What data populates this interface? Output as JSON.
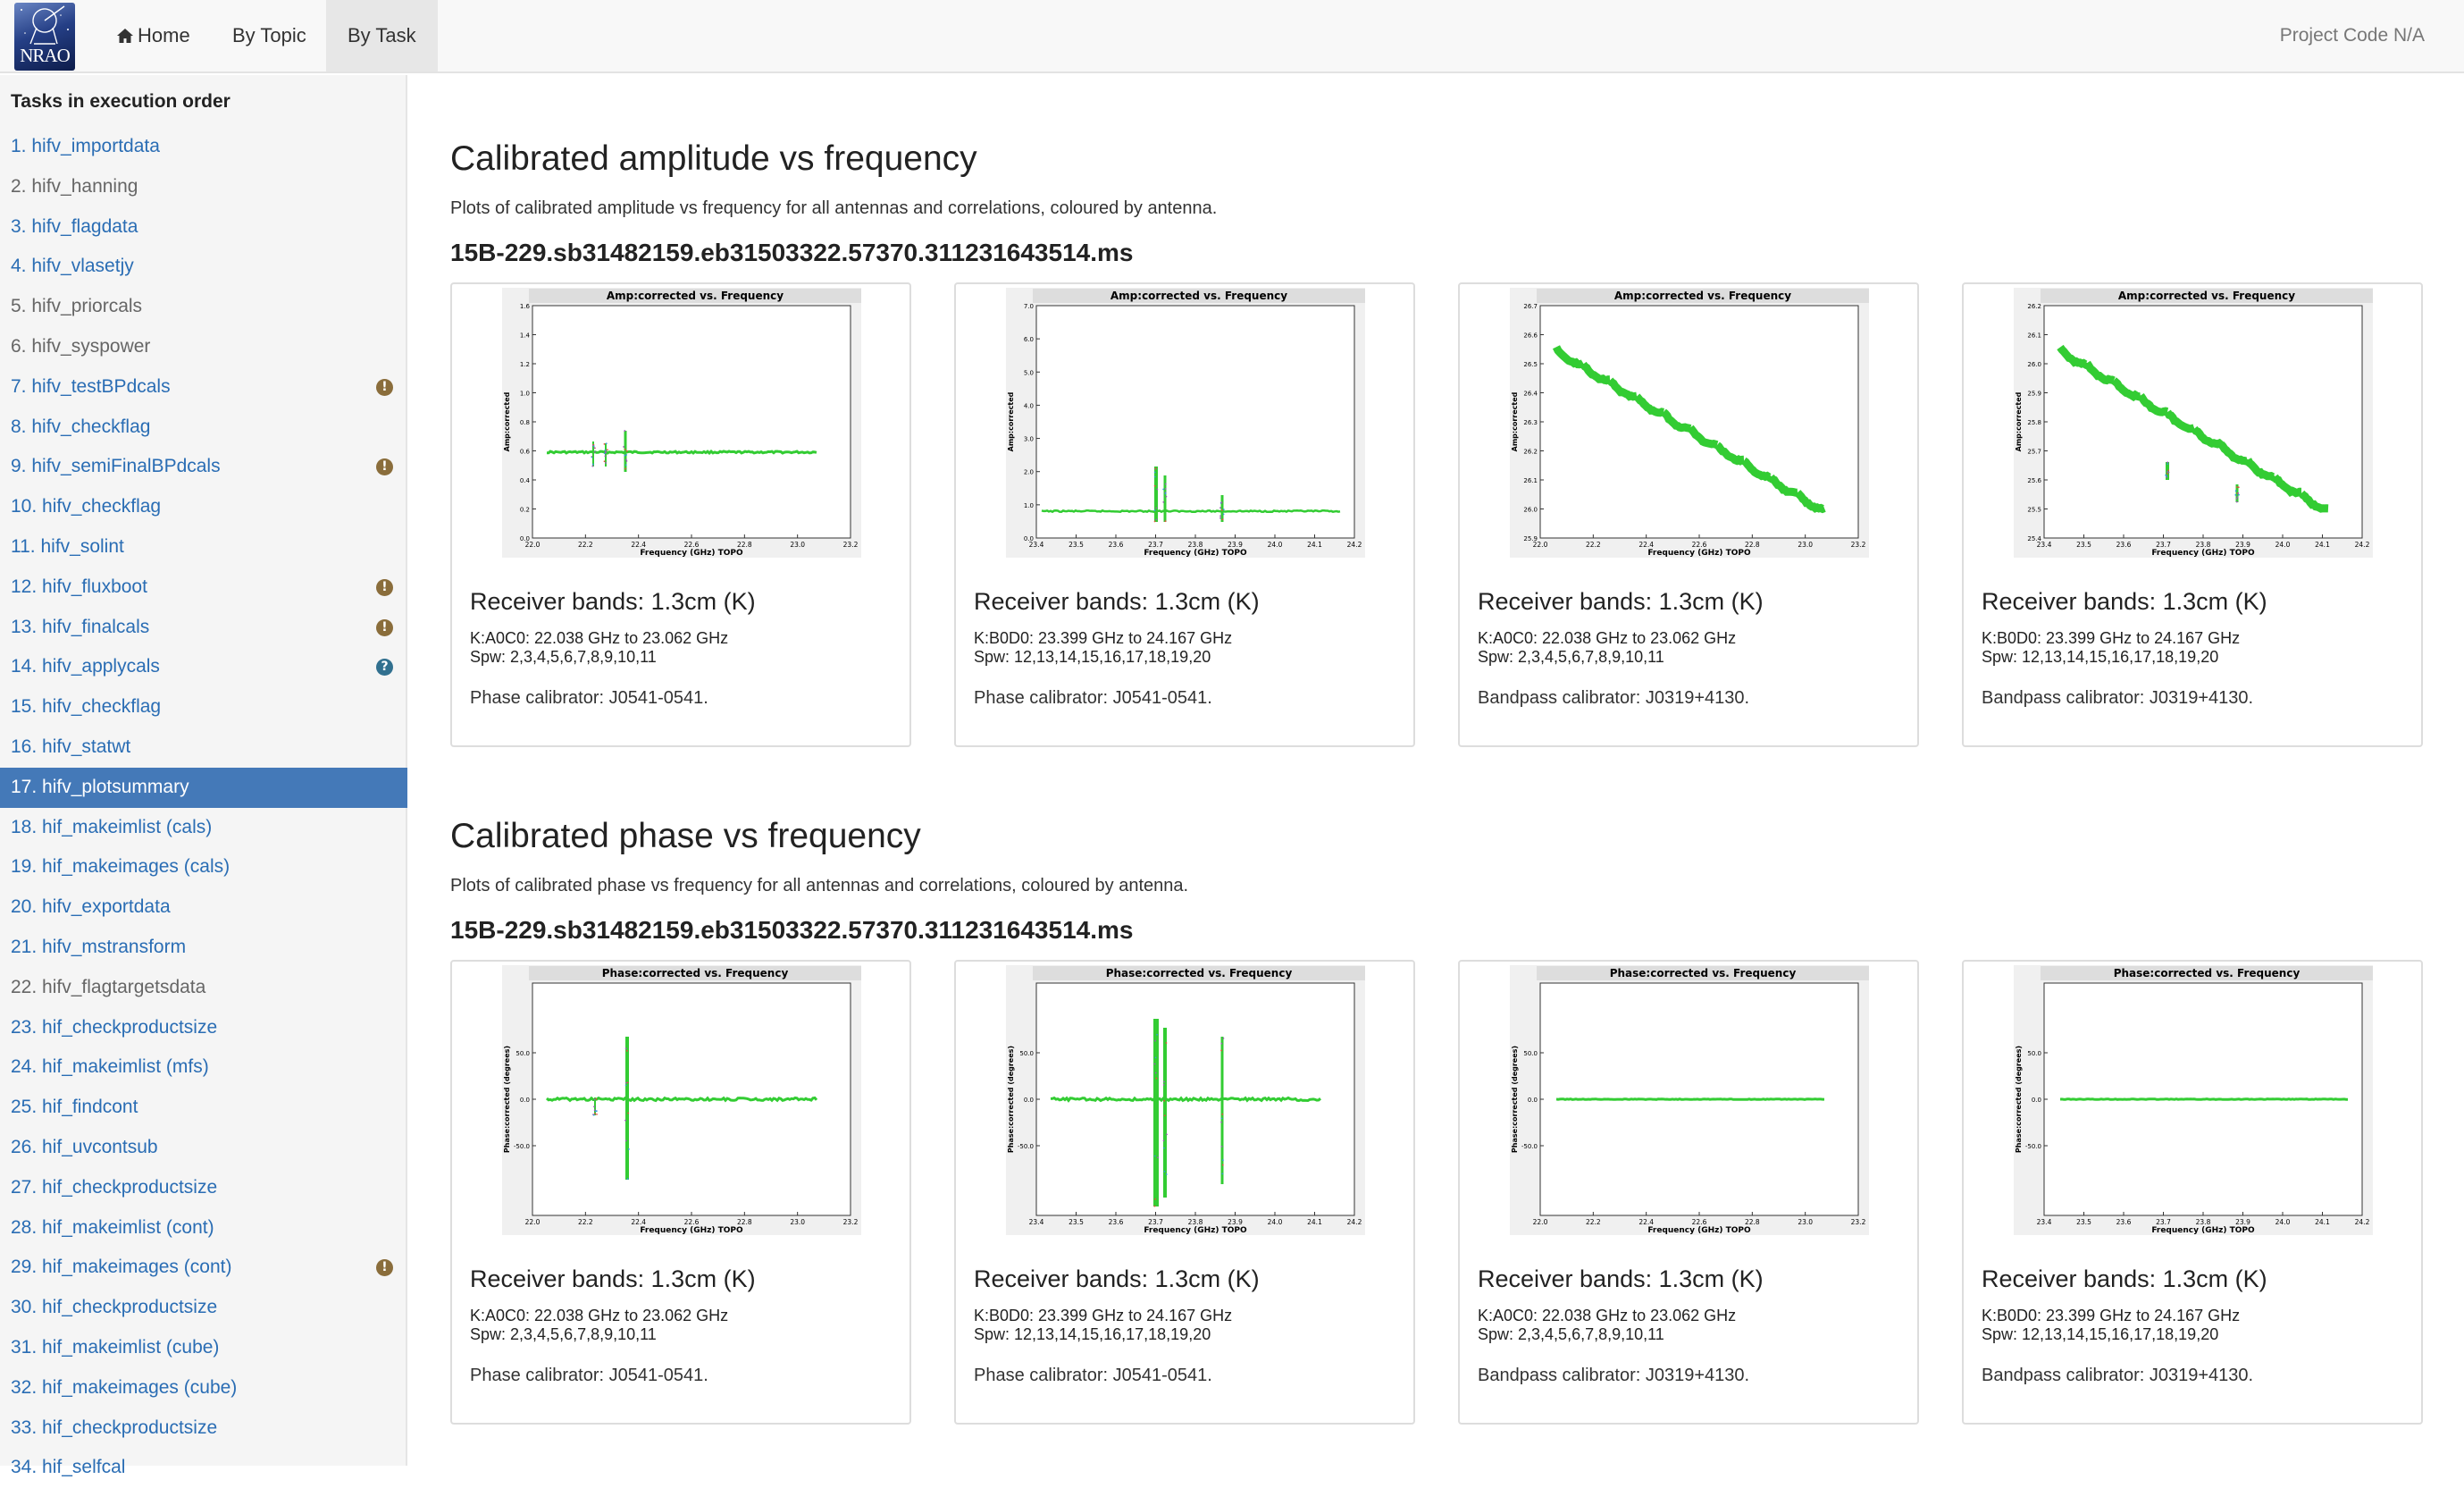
{
  "navbar": {
    "logo_text": "NRAO",
    "home_label": "Home",
    "by_topic_label": "By Topic",
    "by_task_label": "By Task",
    "project_code": "Project Code N/A"
  },
  "sidebar": {
    "title": "Tasks in execution order",
    "items": [
      {
        "label": "1. hifv_importdata",
        "link": true
      },
      {
        "label": "2. hifv_hanning",
        "link": false
      },
      {
        "label": "3. hifv_flagdata",
        "link": true
      },
      {
        "label": "4. hifv_vlasetjy",
        "link": true
      },
      {
        "label": "5. hifv_priorcals",
        "link": false
      },
      {
        "label": "6. hifv_syspower",
        "link": false
      },
      {
        "label": "7. hifv_testBPdcals",
        "link": true,
        "badge": "warning"
      },
      {
        "label": "8. hifv_checkflag",
        "link": true
      },
      {
        "label": "9. hifv_semiFinalBPdcals",
        "link": true,
        "badge": "warning"
      },
      {
        "label": "10. hifv_checkflag",
        "link": true
      },
      {
        "label": "11. hifv_solint",
        "link": true
      },
      {
        "label": "12. hifv_fluxboot",
        "link": true,
        "badge": "warning"
      },
      {
        "label": "13. hifv_finalcals",
        "link": true,
        "badge": "warning"
      },
      {
        "label": "14. hifv_applycals",
        "link": true,
        "badge": "info"
      },
      {
        "label": "15. hifv_checkflag",
        "link": true
      },
      {
        "label": "16. hifv_statwt",
        "link": true
      },
      {
        "label": "17. hifv_plotsummary",
        "link": true,
        "active": true
      },
      {
        "label": "18. hif_makeimlist (cals)",
        "link": true
      },
      {
        "label": "19. hif_makeimages (cals)",
        "link": true
      },
      {
        "label": "20. hifv_exportdata",
        "link": true
      },
      {
        "label": "21. hifv_mstransform",
        "link": true
      },
      {
        "label": "22. hifv_flagtargetsdata",
        "link": false
      },
      {
        "label": "23. hif_checkproductsize",
        "link": true
      },
      {
        "label": "24. hif_makeimlist (mfs)",
        "link": true
      },
      {
        "label": "25. hif_findcont",
        "link": true
      },
      {
        "label": "26. hif_uvcontsub",
        "link": true
      },
      {
        "label": "27. hif_checkproductsize",
        "link": true
      },
      {
        "label": "28. hif_makeimlist (cont)",
        "link": true
      },
      {
        "label": "29. hif_makeimages (cont)",
        "link": true,
        "badge": "warning"
      },
      {
        "label": "30. hif_checkproductsize",
        "link": true
      },
      {
        "label": "31. hif_makeimlist (cube)",
        "link": true
      },
      {
        "label": "32. hif_makeimages (cube)",
        "link": true
      },
      {
        "label": "33. hif_checkproductsize",
        "link": true
      },
      {
        "label": "34. hif_selfcal",
        "link": true
      }
    ]
  },
  "sections": [
    {
      "title": "Calibrated amplitude vs frequency",
      "description": "Plots of calibrated amplitude vs frequency for all antennas and correlations, coloured by antenna.",
      "ms_name": "15B-229.sb31482159.eb31503322.57370.311231643514.ms",
      "plot_title": "Amp:corrected vs. Frequency",
      "ylabel": "Amp:corrected",
      "xlabel": "Frequency (GHz) TOPO",
      "cards": [
        {
          "title": "Receiver bands: 1.3cm (K)",
          "spw_range": "K:A0C0: 22.038 GHz to 23.062 GHz",
          "spw_list": "Spw: 2,3,4,5,6,7,8,9,10,11",
          "calibrator": "Phase calibrator: J0541-0541.",
          "plot": {
            "kind": "amp-flat",
            "xticks": [
              "22.0",
              "22.2",
              "22.4",
              "22.6",
              "22.8",
              "23.0",
              "23.2"
            ],
            "yticks": [
              "0.0",
              "0.2",
              "0.4",
              "0.6",
              "0.8",
              "1.0",
              "1.2",
              "1.4",
              "1.6"
            ]
          }
        },
        {
          "title": "Receiver bands: 1.3cm (K)",
          "spw_range": "K:B0D0: 23.399 GHz to 24.167 GHz",
          "spw_list": "Spw: 12,13,14,15,16,17,18,19,20",
          "calibrator": "Phase calibrator: J0541-0541.",
          "plot": {
            "kind": "amp-flat2",
            "xticks": [
              "23.4",
              "23.5",
              "23.6",
              "23.7",
              "23.8",
              "23.9",
              "24.0",
              "24.1",
              "24.2"
            ],
            "yticks": [
              "0.0",
              "1.0",
              "2.0",
              "3.0",
              "4.0",
              "5.0",
              "6.0",
              "7.0"
            ]
          }
        },
        {
          "title": "Receiver bands: 1.3cm (K)",
          "spw_range": "K:A0C0: 22.038 GHz to 23.062 GHz",
          "spw_list": "Spw: 2,3,4,5,6,7,8,9,10,11",
          "calibrator": "Bandpass calibrator: J0319+4130.",
          "plot": {
            "kind": "amp-slope",
            "xticks": [
              "22.0",
              "22.2",
              "22.4",
              "22.6",
              "22.8",
              "23.0",
              "23.2"
            ],
            "yticks": [
              "25.9",
              "26.0",
              "26.1",
              "26.2",
              "26.3",
              "26.4",
              "26.5",
              "26.6",
              "26.7"
            ]
          }
        },
        {
          "title": "Receiver bands: 1.3cm (K)",
          "spw_range": "K:B0D0: 23.399 GHz to 24.167 GHz",
          "spw_list": "Spw: 12,13,14,15,16,17,18,19,20",
          "calibrator": "Bandpass calibrator: J0319+4130.",
          "plot": {
            "kind": "amp-slope2",
            "xticks": [
              "23.4",
              "23.5",
              "23.6",
              "23.7",
              "23.8",
              "23.9",
              "24.0",
              "24.1",
              "24.2"
            ],
            "yticks": [
              "25.4",
              "25.5",
              "25.6",
              "25.7",
              "25.8",
              "25.9",
              "26.0",
              "26.1",
              "26.2"
            ]
          }
        }
      ]
    },
    {
      "title": "Calibrated phase vs frequency",
      "description": "Plots of calibrated phase vs frequency for all antennas and correlations, coloured by antenna.",
      "ms_name": "15B-229.sb31482159.eb31503322.57370.311231643514.ms",
      "plot_title": "Phase:corrected vs. Frequency",
      "ylabel": "Phase:corrected (degrees)",
      "xlabel": "Frequency (GHz) TOPO",
      "cards": [
        {
          "title": "Receiver bands: 1.3cm (K)",
          "spw_range": "K:A0C0: 22.038 GHz to 23.062 GHz",
          "spw_list": "Spw: 2,3,4,5,6,7,8,9,10,11",
          "calibrator": "Phase calibrator: J0541-0541.",
          "plot": {
            "kind": "phase-a",
            "xticks": [
              "22.0",
              "22.2",
              "22.4",
              "22.6",
              "22.8",
              "23.0",
              "23.2"
            ],
            "yticks": [
              "-50.0",
              "0.0",
              "50.0"
            ]
          }
        },
        {
          "title": "Receiver bands: 1.3cm (K)",
          "spw_range": "K:B0D0: 23.399 GHz to 24.167 GHz",
          "spw_list": "Spw: 12,13,14,15,16,17,18,19,20",
          "calibrator": "Phase calibrator: J0541-0541.",
          "plot": {
            "kind": "phase-b",
            "xticks": [
              "23.4",
              "23.5",
              "23.6",
              "23.7",
              "23.8",
              "23.9",
              "24.0",
              "24.1",
              "24.2"
            ],
            "yticks": [
              "-50.0",
              "0.0",
              "50.0"
            ]
          }
        },
        {
          "title": "Receiver bands: 1.3cm (K)",
          "spw_range": "K:A0C0: 22.038 GHz to 23.062 GHz",
          "spw_list": "Spw: 2,3,4,5,6,7,8,9,10,11",
          "calibrator": "Bandpass calibrator: J0319+4130.",
          "plot": {
            "kind": "phase-flat",
            "xticks": [
              "22.0",
              "22.2",
              "22.4",
              "22.6",
              "22.8",
              "23.0",
              "23.2"
            ],
            "yticks": [
              "-50.0",
              "0.0",
              "50.0"
            ]
          }
        },
        {
          "title": "Receiver bands: 1.3cm (K)",
          "spw_range": "K:B0D0: 23.399 GHz to 24.167 GHz",
          "spw_list": "Spw: 12,13,14,15,16,17,18,19,20",
          "calibrator": "Bandpass calibrator: J0319+4130.",
          "plot": {
            "kind": "phase-flat2",
            "xticks": [
              "23.4",
              "23.5",
              "23.6",
              "23.7",
              "23.8",
              "23.9",
              "24.0",
              "24.1",
              "24.2"
            ],
            "yticks": [
              "-50.0",
              "0.0",
              "50.0"
            ]
          }
        }
      ]
    }
  ],
  "colors": {
    "link": "#2a6db4",
    "active_bg": "#4479b8",
    "warning_badge": "#8a6d3b",
    "info_badge": "#31708f",
    "plot_green": "#33cc33"
  }
}
